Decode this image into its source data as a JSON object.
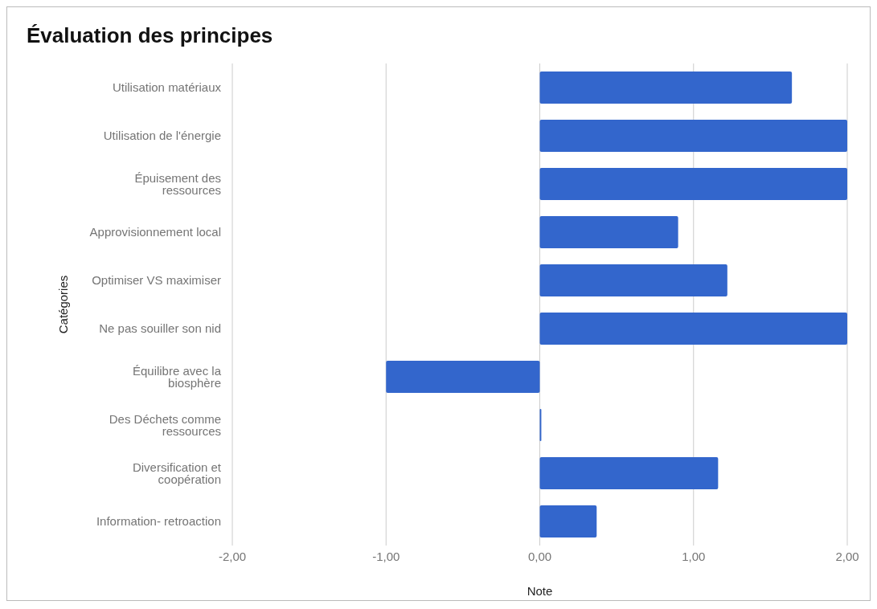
{
  "chart_data": {
    "type": "bar",
    "orientation": "horizontal",
    "title": "Évaluation des principes",
    "xlabel": "Note",
    "ylabel": "Catégories",
    "categories": [
      "Utilisation matériaux",
      "Utilisation  de l'énergie",
      "Épuisement des ressources",
      "Approvisionnement local",
      "Optimiser VS maximiser",
      "Ne pas souiller son nid",
      "Équilibre avec la biosphère",
      "Des Déchets comme ressources",
      "Diversification et coopération",
      "Information- retroaction"
    ],
    "values": [
      1.64,
      2,
      2,
      0.9,
      1.22,
      2,
      -1,
      0.01,
      1.16,
      0.37
    ],
    "color": "#3366cc",
    "xlim": [
      -2,
      2
    ],
    "xticks": [
      {
        "value": -2,
        "label": "-2,00"
      },
      {
        "value": -1,
        "label": "-1,00"
      },
      {
        "value": 0,
        "label": "0,00"
      },
      {
        "value": 1,
        "label": "1,00"
      },
      {
        "value": 2,
        "label": "2,00"
      }
    ],
    "grid": "x",
    "legend": false
  }
}
